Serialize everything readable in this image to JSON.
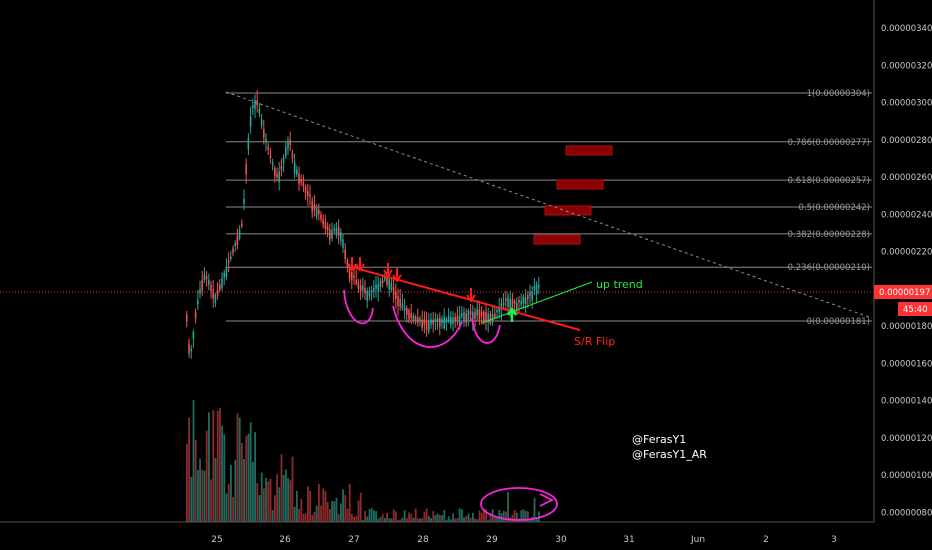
{
  "chart_data": {
    "type": "candlestick",
    "price_axis": {
      "min": 7e-07,
      "max": 3.5e-06,
      "ticks": [
        "0.00000080",
        "0.00000100",
        "0.00000120",
        "0.00000140",
        "0.00000160",
        "0.00000180",
        "0.00000200",
        "0.00000220",
        "0.00000240",
        "0.00000260",
        "0.00000280",
        "0.00000300",
        "0.00000320",
        "0.00000340"
      ],
      "current_price": "0.00000197",
      "countdown": "45:40"
    },
    "time_axis": {
      "ticks": [
        "25",
        "26",
        "27",
        "28",
        "29",
        "30",
        "31",
        "Jun",
        "2",
        "3"
      ]
    },
    "fib_levels": [
      {
        "label": "1(0.00000304)",
        "ratio": 1
      },
      {
        "label": "0.786(0.00000277)",
        "ratio": 0.786
      },
      {
        "label": "0.618(0.00000257)",
        "ratio": 0.618
      },
      {
        "label": "0.5(0.00000242)",
        "ratio": 0.5
      },
      {
        "label": "0.382(0.00000228)",
        "ratio": 0.382
      },
      {
        "label": "0.236(0.00000210)",
        "ratio": 0.236
      },
      {
        "label": "0(0.00000181)",
        "ratio": 0
      }
    ],
    "annotations": {
      "up_trend": "up trend",
      "sr_flip": "S/R Flip"
    },
    "watermark": [
      "@FerasY1",
      "@FerasY1_AR"
    ],
    "colors": {
      "up": "#26a69a",
      "down": "#ef5350",
      "vol_up": "#1e6b62",
      "vol_down": "#8c2b2b",
      "trend": "#ff1a1a",
      "uptrend": "#22ee44",
      "magenta": "#ff22dd",
      "box": "#8b0000",
      "current": "#ff3333"
    }
  }
}
